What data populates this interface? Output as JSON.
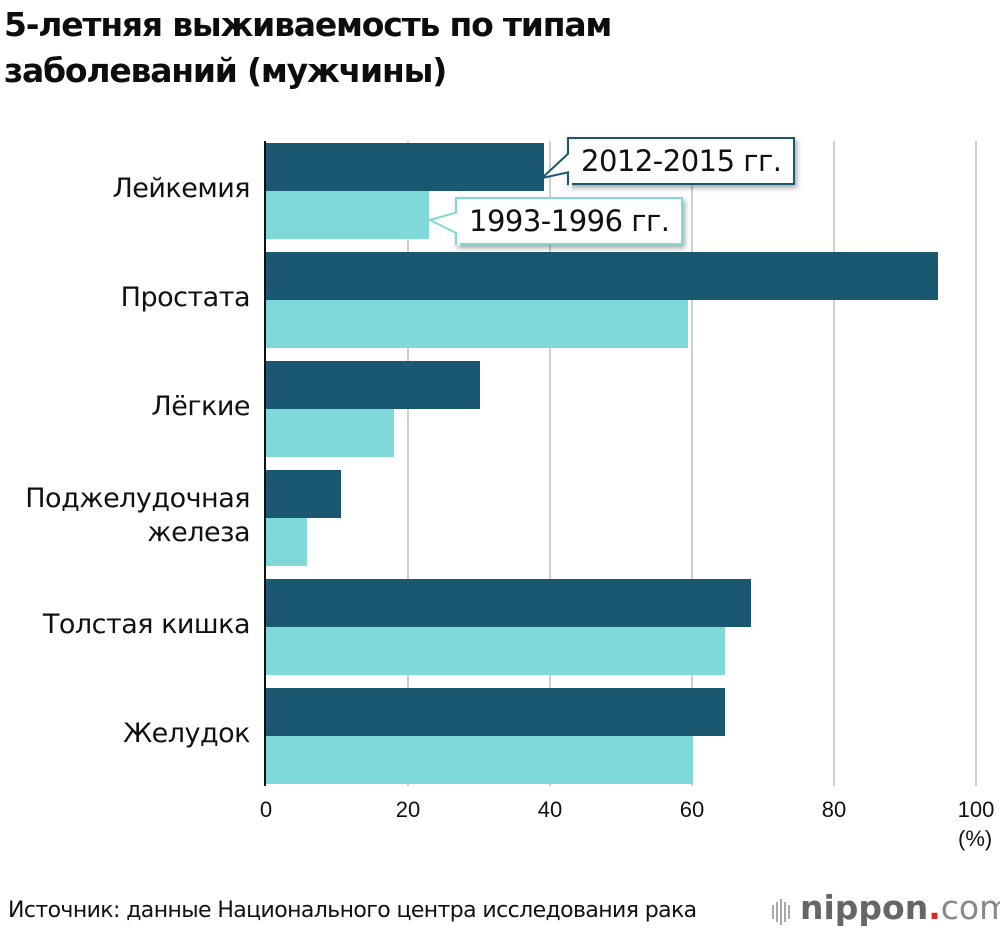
{
  "title": {
    "line1": "5-летняя выживаемость по типам",
    "line2": "заболеваний (мужчины)"
  },
  "legend": {
    "recent": "2012-2015 гг.",
    "past": "1993-1996 гг."
  },
  "colors": {
    "recent": "#1a5872",
    "past": "#7fd9d9",
    "grid": "#cfcfcf",
    "logo_dot": "#e0242b"
  },
  "axis": {
    "ticks": [
      "0",
      "20",
      "40",
      "60",
      "80",
      "100"
    ],
    "unit": "(%)"
  },
  "categories": [
    {
      "label_lines": [
        "Лейкемия"
      ],
      "recent": 39.1,
      "past": 22.9
    },
    {
      "label_lines": [
        "Простата"
      ],
      "recent": 94.7,
      "past": 59.4
    },
    {
      "label_lines": [
        "Лёгкие"
      ],
      "recent": 30.2,
      "past": 18.0
    },
    {
      "label_lines": [
        "Поджелудочная",
        "железа"
      ],
      "recent": 10.6,
      "past": 5.8
    },
    {
      "label_lines": [
        "Толстая кишка"
      ],
      "recent": 68.3,
      "past": 64.6
    },
    {
      "label_lines": [
        "Желудок"
      ],
      "recent": 64.6,
      "past": 60.2
    }
  ],
  "footer": {
    "source": "Источник: данные Национального центра исследования рака",
    "logo_main": "nippon",
    "logo_dot": ".",
    "logo_tail": "com"
  },
  "chart_data": {
    "type": "bar",
    "orientation": "horizontal",
    "title": "5-летняя выживаемость по типам заболеваний (мужчины)",
    "categories": [
      "Лейкемия",
      "Простата",
      "Лёгкие",
      "Поджелудочная железа",
      "Толстая кишка",
      "Желудок"
    ],
    "series": [
      {
        "name": "2012-2015 гг.",
        "color": "#1a5872",
        "values": [
          39.1,
          94.7,
          30.2,
          10.6,
          68.3,
          64.6
        ]
      },
      {
        "name": "1993-1996 гг.",
        "color": "#7fd9d9",
        "values": [
          22.9,
          59.4,
          18.0,
          5.8,
          64.6,
          60.2
        ]
      }
    ],
    "xlabel": "(%)",
    "ylabel": "",
    "xlim": [
      0,
      100
    ],
    "xticks": [
      0,
      20,
      40,
      60,
      80,
      100
    ],
    "grid": true,
    "legend_position": "callouts on first category",
    "source": "Источник: данные Национального центра исследования рака"
  }
}
